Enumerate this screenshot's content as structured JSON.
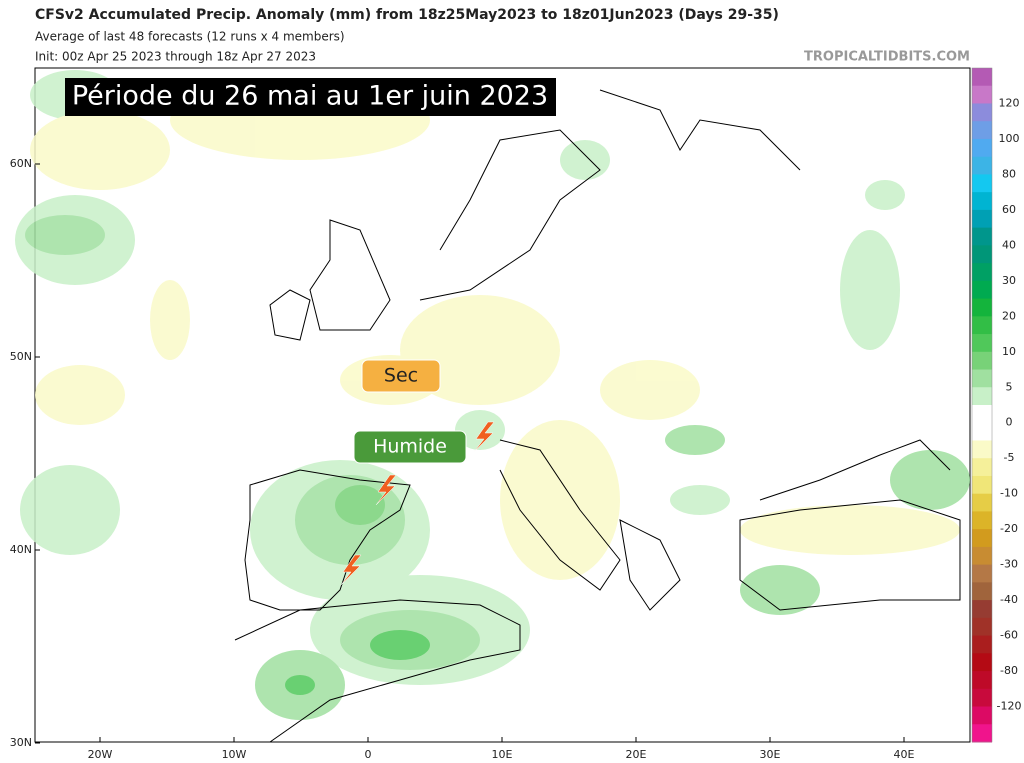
{
  "header": {
    "title": "CFSv2 Accumulated Precip. Anomaly (mm) from 18z25May2023 to 18z01Jun2023 (Days 29-35)",
    "subtitle": "Average of last 48 forecasts (12 runs x 4 members)",
    "init": "Init: 00z Apr 25 2023 through 18z Apr 27 2023",
    "watermark": "TROPICALTIDBITS.COM"
  },
  "overlay": {
    "title": "Période du 26 mai au 1er juin 2023",
    "dry_label": "Sec",
    "wet_label": "Humide"
  },
  "map": {
    "lat_labels": [
      "60N",
      "50N",
      "40N",
      "30N"
    ],
    "lon_labels": [
      "20W",
      "10W",
      "0",
      "10E",
      "20E",
      "30E",
      "40E"
    ]
  },
  "colorbar": {
    "labels": [
      120,
      100,
      80,
      60,
      40,
      30,
      20,
      10,
      5,
      0,
      -5,
      -10,
      -20,
      -30,
      -40,
      -60,
      -80,
      -120
    ],
    "colors": [
      "#b45ab4",
      "#c878c8",
      "#8c8cdc",
      "#6e9ee6",
      "#50aaf0",
      "#3cb4e6",
      "#14c8f0",
      "#00b4d2",
      "#00a0b4",
      "#00968c",
      "#009678",
      "#00a064",
      "#00aa50",
      "#14b43c",
      "#32be46",
      "#50c85a",
      "#78d278",
      "#a0e0a0",
      "#c8f0c8",
      "#ffffff",
      "#ffffff",
      "#fafac8",
      "#f5f09a",
      "#f0e678",
      "#e6cd46",
      "#dcb428",
      "#d29b1e",
      "#c88c32",
      "#b47846",
      "#a0643c",
      "#963c32",
      "#a03228",
      "#aa1e1e",
      "#b40a14",
      "#be0a28",
      "#c80a3c",
      "#dc0a64",
      "#f0148c"
    ]
  }
}
